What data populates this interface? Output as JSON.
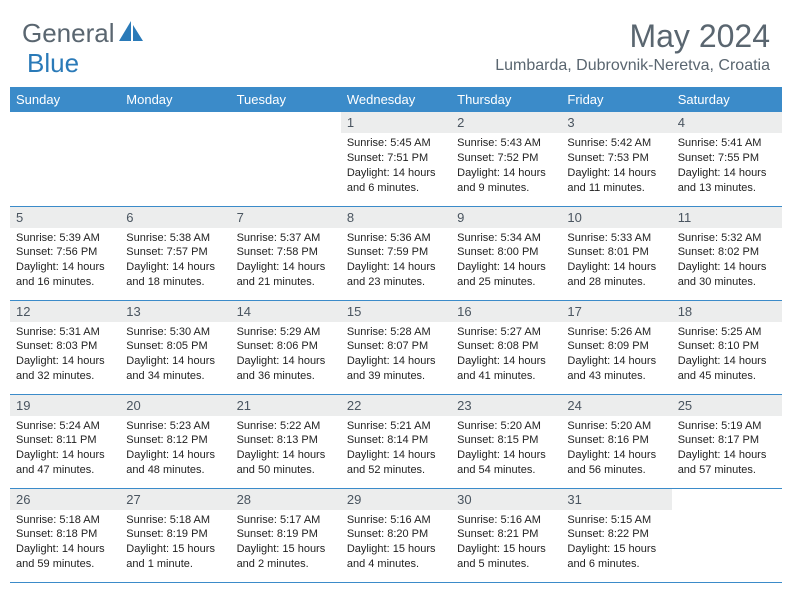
{
  "brand": {
    "text1": "General",
    "text2": "Blue",
    "logo_color": "#2a7ab8",
    "text_color": "#5a6670"
  },
  "title": "May 2024",
  "location": "Lumbarda, Dubrovnik-Neretva, Croatia",
  "header_bg": "#3b8bc9",
  "daynum_bg": "#eceded",
  "weekdays": [
    "Sunday",
    "Monday",
    "Tuesday",
    "Wednesday",
    "Thursday",
    "Friday",
    "Saturday"
  ],
  "weeks": [
    [
      null,
      null,
      null,
      {
        "n": "1",
        "sr": "5:45 AM",
        "ss": "7:51 PM",
        "dl": "14 hours and 6 minutes."
      },
      {
        "n": "2",
        "sr": "5:43 AM",
        "ss": "7:52 PM",
        "dl": "14 hours and 9 minutes."
      },
      {
        "n": "3",
        "sr": "5:42 AM",
        "ss": "7:53 PM",
        "dl": "14 hours and 11 minutes."
      },
      {
        "n": "4",
        "sr": "5:41 AM",
        "ss": "7:55 PM",
        "dl": "14 hours and 13 minutes."
      }
    ],
    [
      {
        "n": "5",
        "sr": "5:39 AM",
        "ss": "7:56 PM",
        "dl": "14 hours and 16 minutes."
      },
      {
        "n": "6",
        "sr": "5:38 AM",
        "ss": "7:57 PM",
        "dl": "14 hours and 18 minutes."
      },
      {
        "n": "7",
        "sr": "5:37 AM",
        "ss": "7:58 PM",
        "dl": "14 hours and 21 minutes."
      },
      {
        "n": "8",
        "sr": "5:36 AM",
        "ss": "7:59 PM",
        "dl": "14 hours and 23 minutes."
      },
      {
        "n": "9",
        "sr": "5:34 AM",
        "ss": "8:00 PM",
        "dl": "14 hours and 25 minutes."
      },
      {
        "n": "10",
        "sr": "5:33 AM",
        "ss": "8:01 PM",
        "dl": "14 hours and 28 minutes."
      },
      {
        "n": "11",
        "sr": "5:32 AM",
        "ss": "8:02 PM",
        "dl": "14 hours and 30 minutes."
      }
    ],
    [
      {
        "n": "12",
        "sr": "5:31 AM",
        "ss": "8:03 PM",
        "dl": "14 hours and 32 minutes."
      },
      {
        "n": "13",
        "sr": "5:30 AM",
        "ss": "8:05 PM",
        "dl": "14 hours and 34 minutes."
      },
      {
        "n": "14",
        "sr": "5:29 AM",
        "ss": "8:06 PM",
        "dl": "14 hours and 36 minutes."
      },
      {
        "n": "15",
        "sr": "5:28 AM",
        "ss": "8:07 PM",
        "dl": "14 hours and 39 minutes."
      },
      {
        "n": "16",
        "sr": "5:27 AM",
        "ss": "8:08 PM",
        "dl": "14 hours and 41 minutes."
      },
      {
        "n": "17",
        "sr": "5:26 AM",
        "ss": "8:09 PM",
        "dl": "14 hours and 43 minutes."
      },
      {
        "n": "18",
        "sr": "5:25 AM",
        "ss": "8:10 PM",
        "dl": "14 hours and 45 minutes."
      }
    ],
    [
      {
        "n": "19",
        "sr": "5:24 AM",
        "ss": "8:11 PM",
        "dl": "14 hours and 47 minutes."
      },
      {
        "n": "20",
        "sr": "5:23 AM",
        "ss": "8:12 PM",
        "dl": "14 hours and 48 minutes."
      },
      {
        "n": "21",
        "sr": "5:22 AM",
        "ss": "8:13 PM",
        "dl": "14 hours and 50 minutes."
      },
      {
        "n": "22",
        "sr": "5:21 AM",
        "ss": "8:14 PM",
        "dl": "14 hours and 52 minutes."
      },
      {
        "n": "23",
        "sr": "5:20 AM",
        "ss": "8:15 PM",
        "dl": "14 hours and 54 minutes."
      },
      {
        "n": "24",
        "sr": "5:20 AM",
        "ss": "8:16 PM",
        "dl": "14 hours and 56 minutes."
      },
      {
        "n": "25",
        "sr": "5:19 AM",
        "ss": "8:17 PM",
        "dl": "14 hours and 57 minutes."
      }
    ],
    [
      {
        "n": "26",
        "sr": "5:18 AM",
        "ss": "8:18 PM",
        "dl": "14 hours and 59 minutes."
      },
      {
        "n": "27",
        "sr": "5:18 AM",
        "ss": "8:19 PM",
        "dl": "15 hours and 1 minute."
      },
      {
        "n": "28",
        "sr": "5:17 AM",
        "ss": "8:19 PM",
        "dl": "15 hours and 2 minutes."
      },
      {
        "n": "29",
        "sr": "5:16 AM",
        "ss": "8:20 PM",
        "dl": "15 hours and 4 minutes."
      },
      {
        "n": "30",
        "sr": "5:16 AM",
        "ss": "8:21 PM",
        "dl": "15 hours and 5 minutes."
      },
      {
        "n": "31",
        "sr": "5:15 AM",
        "ss": "8:22 PM",
        "dl": "15 hours and 6 minutes."
      },
      null
    ]
  ],
  "labels": {
    "sunrise": "Sunrise:",
    "sunset": "Sunset:",
    "daylight": "Daylight:"
  }
}
